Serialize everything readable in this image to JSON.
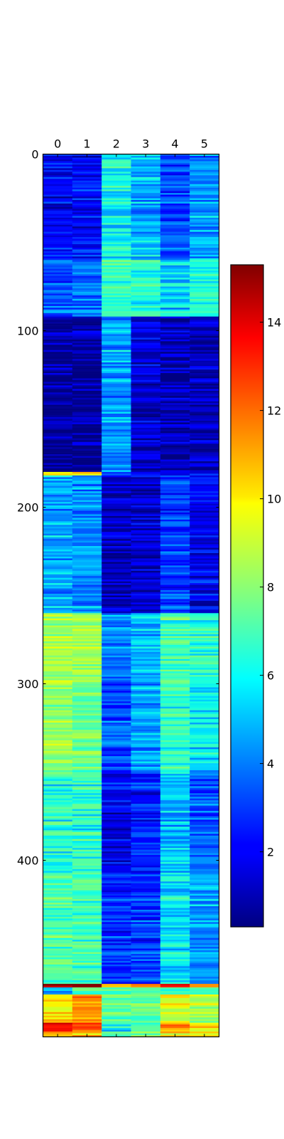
{
  "chart_data": [
    {
      "type": "heatmap",
      "title": "",
      "xlabel": "",
      "ylabel": "",
      "colormap": "jet",
      "x_ticks": [
        "0",
        "1",
        "2",
        "3",
        "4",
        "5"
      ],
      "y_ticks": [
        "0",
        "100",
        "200",
        "300",
        "400"
      ],
      "x_tick_position": "top",
      "n_rows": 500,
      "n_columns": 6,
      "color_range": [
        0.3,
        15.3
      ],
      "row_blocks": [
        {
          "rows": [
            0,
            60
          ],
          "values": [
            2.0,
            2.3,
            5.8,
            4.8,
            3.3,
            4.4
          ]
        },
        {
          "rows": [
            60,
            92
          ],
          "values": [
            3.3,
            3.8,
            6.8,
            6.3,
            5.2,
            6.3
          ]
        },
        {
          "rows": [
            92,
            180
          ],
          "values": [
            0.6,
            0.7,
            4.4,
            1.4,
            0.8,
            1.1
          ]
        },
        {
          "rows": [
            180,
            182
          ],
          "values": [
            10.0,
            9.8,
            2.0,
            1.4,
            1.5,
            1.6
          ]
        },
        {
          "rows": [
            182,
            260
          ],
          "values": [
            4.6,
            4.2,
            1.0,
            1.3,
            3.0,
            1.9
          ]
        },
        {
          "rows": [
            260,
            300
          ],
          "values": [
            8.6,
            8.4,
            4.0,
            5.0,
            6.8,
            6.6
          ]
        },
        {
          "rows": [
            300,
            350
          ],
          "values": [
            8.2,
            7.5,
            3.3,
            4.6,
            6.4,
            5.6
          ]
        },
        {
          "rows": [
            350,
            408
          ],
          "values": [
            6.3,
            6.2,
            1.8,
            2.5,
            4.9,
            3.4
          ]
        },
        {
          "rows": [
            408,
            470
          ],
          "values": [
            7.0,
            6.8,
            2.7,
            3.0,
            5.5,
            4.5
          ]
        },
        {
          "rows": [
            470,
            472
          ],
          "values": [
            15.3,
            14.5,
            10.2,
            12.5,
            13.5,
            12.0
          ]
        },
        {
          "rows": [
            472,
            476
          ],
          "values": [
            4.8,
            7.5,
            7.2,
            7.0,
            6.5,
            7.0
          ]
        },
        {
          "rows": [
            476,
            492
          ],
          "values": [
            10.5,
            11.5,
            7.0,
            7.5,
            9.6,
            8.6
          ]
        },
        {
          "rows": [
            492,
            497
          ],
          "values": [
            13.5,
            12.5,
            6.0,
            7.2,
            11.8,
            10.5
          ]
        },
        {
          "rows": [
            497,
            500
          ],
          "values": [
            11.0,
            11.0,
            6.5,
            8.0,
            10.0,
            10.8
          ]
        }
      ]
    },
    {
      "type": "colorbar",
      "colormap": "jet",
      "range": [
        0.3,
        15.3
      ],
      "ticks": [
        "2",
        "4",
        "6",
        "8",
        "10",
        "12",
        "14"
      ],
      "tick_values": [
        2,
        4,
        6,
        8,
        10,
        12,
        14
      ]
    }
  ]
}
